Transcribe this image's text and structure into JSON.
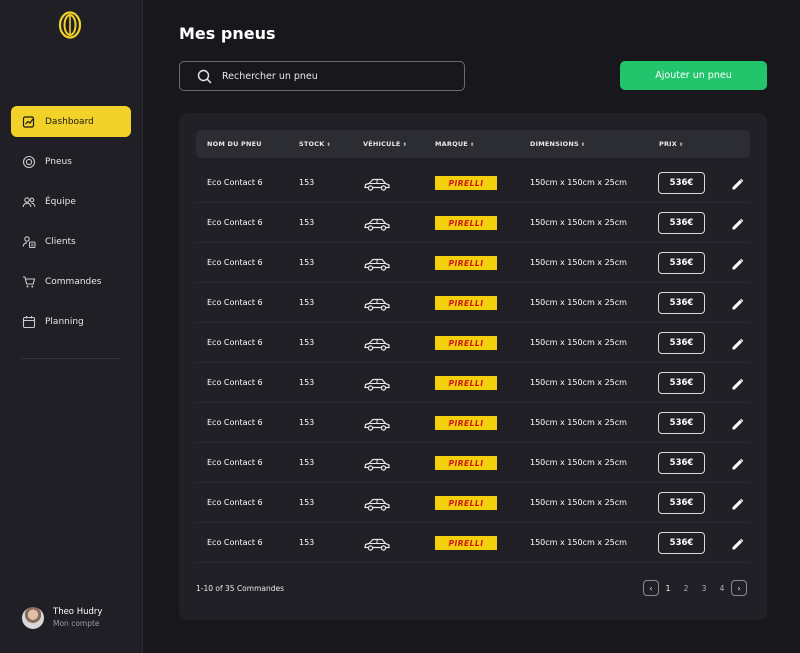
{
  "sidebar": {
    "logo": "tire-logo-icon",
    "items": [
      {
        "label": "Dashboard",
        "icon": "chart-icon",
        "active": true
      },
      {
        "label": "Pneus",
        "icon": "tire-icon",
        "active": false
      },
      {
        "label": "Équipe",
        "icon": "team-icon",
        "active": false
      },
      {
        "label": "Clients",
        "icon": "clients-icon",
        "active": false
      },
      {
        "label": "Commandes",
        "icon": "cart-icon",
        "active": false
      },
      {
        "label": "Planning",
        "icon": "calendar-icon",
        "active": false
      }
    ],
    "profile": {
      "name": "Theo Hudry",
      "subtitle": "Mon compte"
    }
  },
  "header": {
    "title": "Mes pneus",
    "search_placeholder": "Rechercher un pneu",
    "add_button": "Ajouter un pneu"
  },
  "table": {
    "columns": [
      "NOM DU PNEU",
      "STOCK",
      "VÉHICULE",
      "MARQUE",
      "DIMENSIONS",
      "PRIX"
    ],
    "rows": [
      {
        "name": "Eco Contact 6",
        "stock": "153",
        "vehicle": "car-icon",
        "brand": "PIRELLI",
        "dimensions": "150cm x 150cm x 25cm",
        "price": "536€"
      },
      {
        "name": "Eco Contact 6",
        "stock": "153",
        "vehicle": "car-icon",
        "brand": "PIRELLI",
        "dimensions": "150cm x 150cm x 25cm",
        "price": "536€"
      },
      {
        "name": "Eco Contact 6",
        "stock": "153",
        "vehicle": "car-icon",
        "brand": "PIRELLI",
        "dimensions": "150cm x 150cm x 25cm",
        "price": "536€"
      },
      {
        "name": "Eco Contact 6",
        "stock": "153",
        "vehicle": "car-icon",
        "brand": "PIRELLI",
        "dimensions": "150cm x 150cm x 25cm",
        "price": "536€"
      },
      {
        "name": "Eco Contact 6",
        "stock": "153",
        "vehicle": "car-icon",
        "brand": "PIRELLI",
        "dimensions": "150cm x 150cm x 25cm",
        "price": "536€"
      },
      {
        "name": "Eco Contact 6",
        "stock": "153",
        "vehicle": "car-icon",
        "brand": "PIRELLI",
        "dimensions": "150cm x 150cm x 25cm",
        "price": "536€"
      },
      {
        "name": "Eco Contact 6",
        "stock": "153",
        "vehicle": "car-icon",
        "brand": "PIRELLI",
        "dimensions": "150cm x 150cm x 25cm",
        "price": "536€"
      },
      {
        "name": "Eco Contact 6",
        "stock": "153",
        "vehicle": "car-icon",
        "brand": "PIRELLI",
        "dimensions": "150cm x 150cm x 25cm",
        "price": "536€"
      },
      {
        "name": "Eco Contact 6",
        "stock": "153",
        "vehicle": "car-icon",
        "brand": "PIRELLI",
        "dimensions": "150cm x 150cm x 25cm",
        "price": "536€"
      },
      {
        "name": "Eco Contact 6",
        "stock": "153",
        "vehicle": "car-icon",
        "brand": "PIRELLI",
        "dimensions": "150cm x 150cm x 25cm",
        "price": "536€"
      }
    ]
  },
  "footer": {
    "count": "1-10 of 35 Commandes",
    "pages": [
      "1",
      "2",
      "3",
      "4"
    ],
    "current_page": "1",
    "prev": "‹",
    "next": "›"
  },
  "colors": {
    "accent": "#f2d229",
    "primary_button": "#22c46c",
    "background": "#17171c",
    "card": "#202026"
  }
}
